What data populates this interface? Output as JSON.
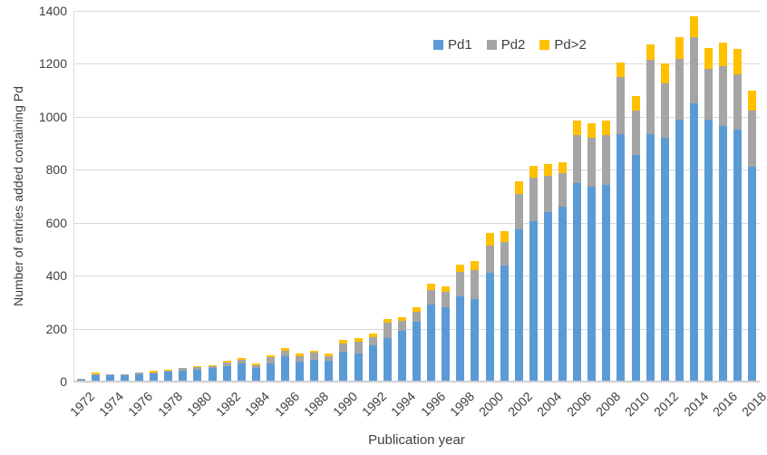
{
  "chart_data": {
    "type": "bar",
    "stacked": true,
    "xlabel": "Publication year",
    "ylabel": "Number of entries added containing Pd",
    "ylim": [
      0,
      1400
    ],
    "y_ticks": [
      0,
      200,
      400,
      600,
      800,
      1000,
      1200,
      1400
    ],
    "grid": true,
    "legend_position": "top-inside",
    "categories": [
      1972,
      1973,
      1974,
      1975,
      1976,
      1977,
      1978,
      1979,
      1980,
      1981,
      1982,
      1983,
      1984,
      1985,
      1986,
      1987,
      1988,
      1989,
      1990,
      1991,
      1992,
      1993,
      1994,
      1995,
      1996,
      1997,
      1998,
      1999,
      2000,
      2001,
      2002,
      2003,
      2004,
      2005,
      2006,
      2007,
      2008,
      2009,
      2010,
      2011,
      2012,
      2013,
      2014,
      2015,
      2016,
      2017,
      2018
    ],
    "x_tick_labels": [
      "1972",
      "1974",
      "1976",
      "1978",
      "1980",
      "1982",
      "1984",
      "1986",
      "1988",
      "1990",
      "1992",
      "1994",
      "1996",
      "1998",
      "2000",
      "2002",
      "2004",
      "2006",
      "2008",
      "2010",
      "2012",
      "2014",
      "2016",
      "2018"
    ],
    "series": [
      {
        "name": "Pd1",
        "color": "#5B9BD5",
        "values": [
          10,
          25,
          24,
          23,
          28,
          32,
          36,
          42,
          44,
          50,
          59,
          67,
          51,
          70,
          95,
          76,
          82,
          78,
          114,
          106,
          136,
          163,
          192,
          226,
          292,
          280,
          323,
          310,
          411,
          437,
          575,
          605,
          640,
          660,
          748,
          735,
          743,
          935,
          855,
          935,
          920,
          990,
          1050,
          990,
          965,
          950,
          810
        ]
      },
      {
        "name": "Pd2",
        "color": "#A5A5A5",
        "values": [
          2,
          3,
          5,
          4,
          5,
          3,
          4,
          11,
          12,
          10,
          13,
          14,
          9,
          22,
          23,
          20,
          26,
          19,
          29,
          44,
          31,
          59,
          39,
          37,
          54,
          60,
          91,
          112,
          103,
          91,
          135,
          165,
          137,
          128,
          182,
          185,
          187,
          215,
          170,
          280,
          205,
          230,
          250,
          190,
          225,
          210,
          215
        ]
      },
      {
        "name": "Pd>2",
        "color": "#FFC000",
        "values": [
          0,
          5,
          0,
          0,
          0,
          5,
          6,
          0,
          2,
          2,
          8,
          9,
          8,
          8,
          8,
          9,
          10,
          8,
          15,
          15,
          15,
          13,
          12,
          17,
          25,
          20,
          26,
          35,
          49,
          40,
          45,
          45,
          45,
          42,
          55,
          55,
          55,
          55,
          55,
          60,
          75,
          80,
          80,
          80,
          90,
          95,
          75
        ]
      }
    ]
  },
  "style_colors": {
    "gridline": "#D9D9D9",
    "axis_line": "#D0CECE",
    "text": "#404040",
    "background": "#FFFFFF"
  }
}
